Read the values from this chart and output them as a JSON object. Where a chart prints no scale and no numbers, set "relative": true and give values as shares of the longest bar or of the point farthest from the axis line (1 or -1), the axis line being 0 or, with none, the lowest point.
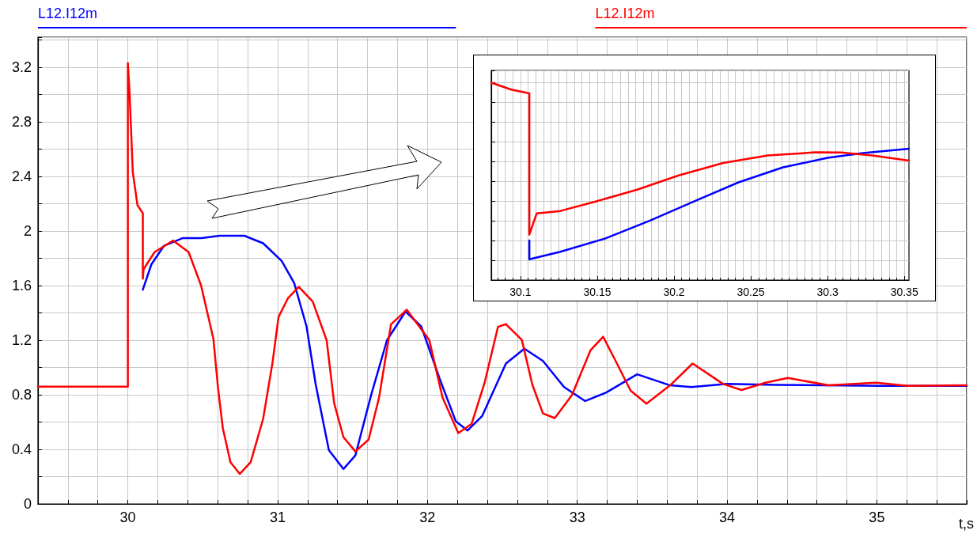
{
  "chart_data": [
    {
      "type": "line",
      "xlabel": "t,s",
      "xlim": [
        29.4,
        35.6
      ],
      "xticks": [
        {
          "value": 29.6,
          "label": null
        },
        {
          "value": 29.8,
          "label": null
        },
        30,
        {
          "value": 30.2,
          "label": null
        },
        {
          "value": 30.4,
          "label": null
        },
        {
          "value": 30.6,
          "label": null
        },
        {
          "value": 30.8,
          "label": null
        },
        31,
        {
          "value": 31.2,
          "label": null
        },
        {
          "value": 31.4,
          "label": null
        },
        {
          "value": 31.6,
          "label": null
        },
        {
          "value": 31.8,
          "label": null
        },
        32,
        {
          "value": 32.2,
          "label": null
        },
        {
          "value": 32.4,
          "label": null
        },
        {
          "value": 32.6,
          "label": null
        },
        {
          "value": 32.8,
          "label": null
        },
        33,
        {
          "value": 33.2,
          "label": null
        },
        {
          "value": 33.4,
          "label": null
        },
        {
          "value": 33.6,
          "label": null
        },
        {
          "value": 33.8,
          "label": null
        },
        34,
        {
          "value": 34.2,
          "label": null
        },
        {
          "value": 34.4,
          "label": null
        },
        {
          "value": 34.6,
          "label": null
        },
        {
          "value": 34.8,
          "label": null
        },
        35,
        {
          "value": 35.2,
          "label": null
        },
        {
          "value": 35.4,
          "label": null
        }
      ],
      "ylim": [
        0,
        3.42
      ],
      "yticks": [
        0,
        {
          "value": 0.2,
          "label": null
        },
        0.4,
        {
          "value": 0.6,
          "label": null
        },
        0.8,
        {
          "value": 1.0,
          "label": null
        },
        1.2,
        {
          "value": 1.4,
          "label": null
        },
        1.6,
        {
          "value": 1.8,
          "label": null
        },
        2,
        {
          "value": 2.2,
          "label": null
        },
        2.4,
        {
          "value": 2.6,
          "label": null
        },
        2.8,
        {
          "value": 3.0,
          "label": null
        },
        3.2,
        {
          "value": 3.4,
          "label": null
        }
      ],
      "grid": true,
      "legend": "top",
      "marker": "none",
      "line_style": "solid",
      "series": [
        {
          "name": "L12.I12m",
          "color": "#0000ff",
          "x": [
            30.1,
            30.157,
            30.24,
            30.364,
            30.489,
            30.613,
            30.778,
            30.903,
            31.027,
            31.11,
            31.193,
            31.254,
            31.342,
            31.439,
            31.519,
            31.624,
            31.73,
            31.854,
            31.959,
            32.083,
            32.189,
            32.268,
            32.365,
            32.524,
            32.647,
            32.771,
            32.912,
            33.053,
            33.194,
            33.4,
            33.62,
            33.762,
            34.0,
            34.326,
            35.03,
            35.6
          ],
          "values": [
            1.57,
            1.755,
            1.89,
            1.947,
            1.947,
            1.965,
            1.965,
            1.91,
            1.78,
            1.62,
            1.3,
            0.875,
            0.394,
            0.256,
            0.356,
            0.798,
            1.2,
            1.41,
            1.3,
            0.913,
            0.606,
            0.538,
            0.644,
            1.029,
            1.138,
            1.048,
            0.856,
            0.754,
            0.817,
            0.95,
            0.869,
            0.856,
            0.879,
            0.873,
            0.865,
            0.865
          ]
        },
        {
          "name": "L12.I12m",
          "color": "#ff0000",
          "x": [
            29.4,
            30.0,
            30.0,
            30.012,
            30.033,
            30.064,
            30.1,
            30.1,
            30.105,
            30.178,
            30.302,
            30.406,
            30.489,
            30.571,
            30.602,
            30.634,
            30.685,
            30.747,
            30.82,
            30.903,
            30.965,
            31.006,
            31.068,
            31.141,
            31.234,
            31.327,
            31.377,
            31.439,
            31.519,
            31.607,
            31.677,
            31.757,
            31.862,
            32.012,
            32.101,
            32.206,
            32.295,
            32.383,
            32.471,
            32.524,
            32.63,
            32.7,
            32.771,
            32.85,
            32.965,
            33.088,
            33.173,
            33.265,
            33.356,
            33.462,
            33.62,
            33.77,
            33.974,
            34.097,
            34.256,
            34.406,
            34.679,
            34.996,
            35.208,
            35.6
          ],
          "values": [
            0.86,
            0.86,
            3.23,
            3.0,
            2.43,
            2.19,
            2.13,
            1.65,
            1.72,
            1.845,
            1.93,
            1.845,
            1.6,
            1.21,
            0.85,
            0.555,
            0.306,
            0.22,
            0.306,
            0.623,
            1.03,
            1.37,
            1.506,
            1.59,
            1.483,
            1.2,
            0.74,
            0.49,
            0.385,
            0.471,
            0.779,
            1.317,
            1.423,
            1.202,
            0.779,
            0.519,
            0.587,
            0.894,
            1.298,
            1.317,
            1.202,
            0.875,
            0.663,
            0.629,
            0.798,
            1.125,
            1.225,
            1.029,
            0.83,
            0.735,
            0.869,
            1.029,
            0.879,
            0.835,
            0.888,
            0.923,
            0.869,
            0.888,
            0.865,
            0.869
          ]
        }
      ]
    },
    {
      "type": "line",
      "relative": true,
      "xlim": [
        30.081,
        30.353
      ],
      "xticks": [
        30.1,
        30.15,
        30.2,
        30.25,
        30.3,
        30.35
      ],
      "grid": true,
      "tick_labels": "x",
      "marker": "none",
      "line_style": "solid",
      "series": [
        {
          "color": "#0000ff",
          "x": [
            30.1058,
            30.1058,
            30.126,
            30.155,
            30.184,
            30.213,
            30.242,
            30.271,
            30.3,
            30.323,
            30.353
          ],
          "values": [
            0.2,
            0.105,
            0.143,
            0.21,
            0.3,
            0.398,
            0.495,
            0.571,
            0.619,
            0.643,
            0.665
          ]
        },
        {
          "color": "#ff0000",
          "x": [
            30.081,
            30.094,
            30.1058,
            30.1058,
            30.1106,
            30.126,
            30.149,
            30.176,
            30.203,
            30.232,
            30.261,
            30.292,
            30.309,
            30.329,
            30.353
          ],
          "values": [
            1.0,
            0.965,
            0.946,
            0.23,
            0.338,
            0.35,
            0.398,
            0.458,
            0.53,
            0.593,
            0.631,
            0.647,
            0.646,
            0.631,
            0.605
          ]
        }
      ]
    }
  ]
}
